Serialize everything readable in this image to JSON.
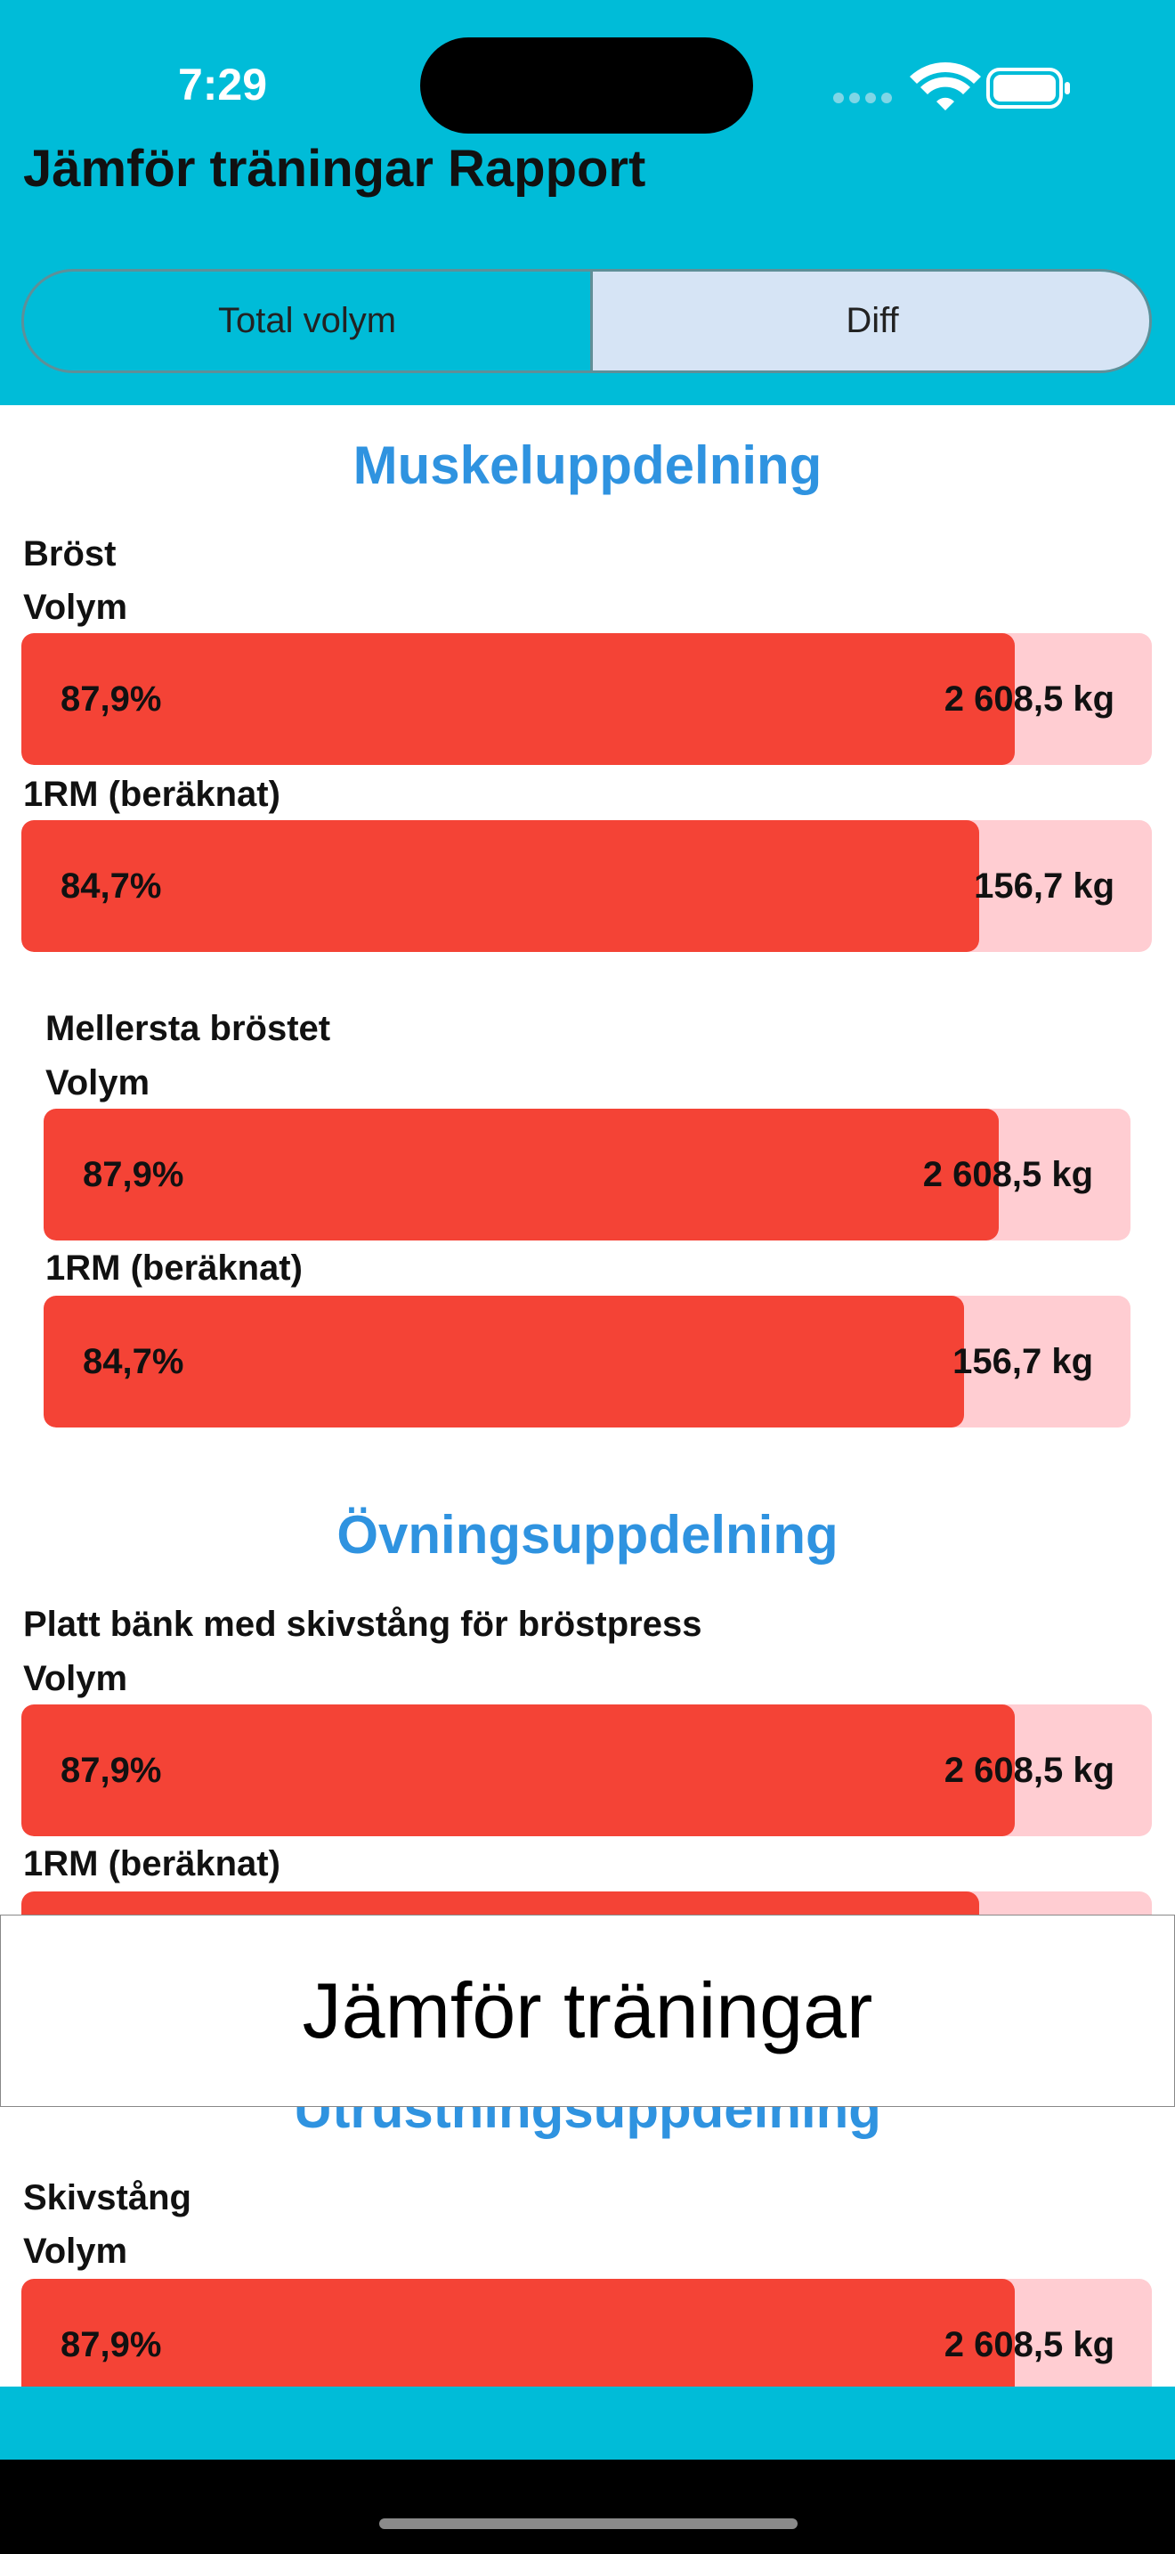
{
  "status_bar": {
    "time": "7:29"
  },
  "header": {
    "title": "Jämför träningar Rapport"
  },
  "tabs": [
    "Total volym",
    "Diff"
  ],
  "sections": [
    {
      "title": "Muskeluppdelning",
      "groups": [
        {
          "name": "Bröst",
          "metrics": [
            {
              "label": "Volym",
              "percent": {
                "value": 87.9,
                "label": "87,9%"
              },
              "amount": "2 608,5 kg"
            },
            {
              "label": "1RM (beräknat)",
              "percent": {
                "value": 84.7,
                "label": "84,7%"
              },
              "amount": "156,7 kg"
            }
          ]
        },
        {
          "name": "Mellersta bröstet",
          "metrics": [
            {
              "label": "Volym",
              "percent": {
                "value": 87.9,
                "label": "87,9%"
              },
              "amount": "2 608,5 kg"
            },
            {
              "label": "1RM (beräknat)",
              "percent": {
                "value": 84.7,
                "label": "84,7%"
              },
              "amount": "156,7 kg"
            }
          ]
        }
      ]
    },
    {
      "title": "Övningsuppdelning",
      "groups": [
        {
          "name": "Platt bänk med skivstång för bröstpress",
          "metrics": [
            {
              "label": "Volym",
              "percent": {
                "value": 87.9,
                "label": "87,9%"
              },
              "amount": "2 608,5 kg"
            },
            {
              "label": "1RM (beräknat)",
              "percent": {
                "value": 84.7
              }
            }
          ]
        }
      ]
    },
    {
      "title": "Utrustningsuppdelning",
      "groups": [
        {
          "name": "Skivstång",
          "metrics": [
            {
              "label": "Volym",
              "percent": {
                "value": 87.9,
                "label": "87,9%"
              },
              "amount": "2 608,5 kg"
            }
          ]
        }
      ]
    }
  ],
  "overlay": {
    "text": "Jämför träningar"
  }
}
